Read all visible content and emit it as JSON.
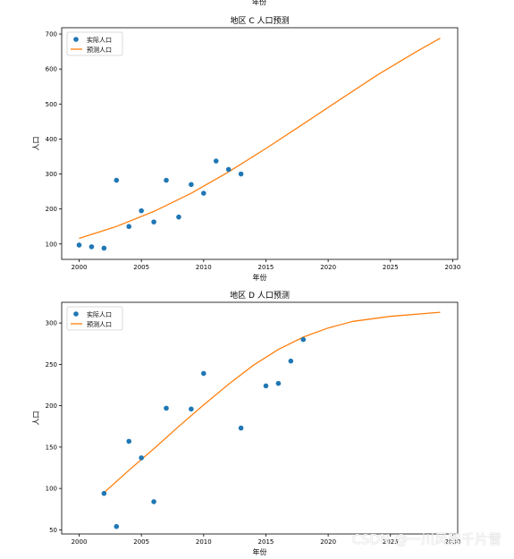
{
  "top_cut_label": "年份",
  "watermark": "CSDN @一川风絮千片雪",
  "colors": {
    "actual": "#1f77b4",
    "predicted": "#ff7f0e"
  },
  "chart_data": [
    {
      "type": "scatter",
      "title": "地区 C 人口预测",
      "xlabel": "年份",
      "ylabel": "人口",
      "xlim": [
        1998.6,
        2030.4
      ],
      "ylim": [
        56,
        718
      ],
      "xticks": [
        2000,
        2005,
        2010,
        2015,
        2020,
        2025,
        2030
      ],
      "yticks": [
        100,
        200,
        300,
        400,
        500,
        600,
        700
      ],
      "legend": {
        "position": "top-left",
        "actual_label": "实际人口",
        "predicted_label": "预测人口"
      },
      "actual": [
        {
          "x": 2000,
          "y": 97
        },
        {
          "x": 2001,
          "y": 92
        },
        {
          "x": 2002,
          "y": 88
        },
        {
          "x": 2003,
          "y": 282
        },
        {
          "x": 2004,
          "y": 150
        },
        {
          "x": 2005,
          "y": 195
        },
        {
          "x": 2006,
          "y": 163
        },
        {
          "x": 2007,
          "y": 282
        },
        {
          "x": 2008,
          "y": 177
        },
        {
          "x": 2009,
          "y": 270
        },
        {
          "x": 2010,
          "y": 245
        },
        {
          "x": 2011,
          "y": 337
        },
        {
          "x": 2012,
          "y": 313
        },
        {
          "x": 2013,
          "y": 300
        }
      ],
      "predicted": [
        {
          "x": 2000,
          "y": 116
        },
        {
          "x": 2003,
          "y": 150
        },
        {
          "x": 2006,
          "y": 193
        },
        {
          "x": 2009,
          "y": 245
        },
        {
          "x": 2012,
          "y": 306
        },
        {
          "x": 2015,
          "y": 373
        },
        {
          "x": 2018,
          "y": 443
        },
        {
          "x": 2021,
          "y": 514
        },
        {
          "x": 2024,
          "y": 584
        },
        {
          "x": 2027,
          "y": 648
        },
        {
          "x": 2029,
          "y": 688
        }
      ]
    },
    {
      "type": "scatter",
      "title": "地区 D 人口预测",
      "xlabel": "年份",
      "ylabel": "人口",
      "xlim": [
        1998.6,
        2030.4
      ],
      "ylim": [
        45,
        325
      ],
      "xticks": [
        2000,
        2005,
        2010,
        2015,
        2020,
        2025,
        2030
      ],
      "yticks": [
        50,
        100,
        150,
        200,
        250,
        300
      ],
      "legend": {
        "position": "top-left",
        "actual_label": "实际人口",
        "predicted_label": "预测人口"
      },
      "actual": [
        {
          "x": 2002,
          "y": 94
        },
        {
          "x": 2003,
          "y": 54
        },
        {
          "x": 2004,
          "y": 157
        },
        {
          "x": 2005,
          "y": 137
        },
        {
          "x": 2006,
          "y": 84
        },
        {
          "x": 2007,
          "y": 197
        },
        {
          "x": 2009,
          "y": 196
        },
        {
          "x": 2010,
          "y": 239
        },
        {
          "x": 2013,
          "y": 173
        },
        {
          "x": 2015,
          "y": 224
        },
        {
          "x": 2016,
          "y": 227
        },
        {
          "x": 2017,
          "y": 254
        },
        {
          "x": 2018,
          "y": 280
        }
      ],
      "predicted": [
        {
          "x": 2002,
          "y": 95
        },
        {
          "x": 2004,
          "y": 122
        },
        {
          "x": 2006,
          "y": 148
        },
        {
          "x": 2008,
          "y": 175
        },
        {
          "x": 2010,
          "y": 201
        },
        {
          "x": 2012,
          "y": 226
        },
        {
          "x": 2014,
          "y": 249
        },
        {
          "x": 2016,
          "y": 268
        },
        {
          "x": 2018,
          "y": 283
        },
        {
          "x": 2020,
          "y": 294
        },
        {
          "x": 2022,
          "y": 302
        },
        {
          "x": 2025,
          "y": 308
        },
        {
          "x": 2029,
          "y": 313
        }
      ]
    }
  ]
}
